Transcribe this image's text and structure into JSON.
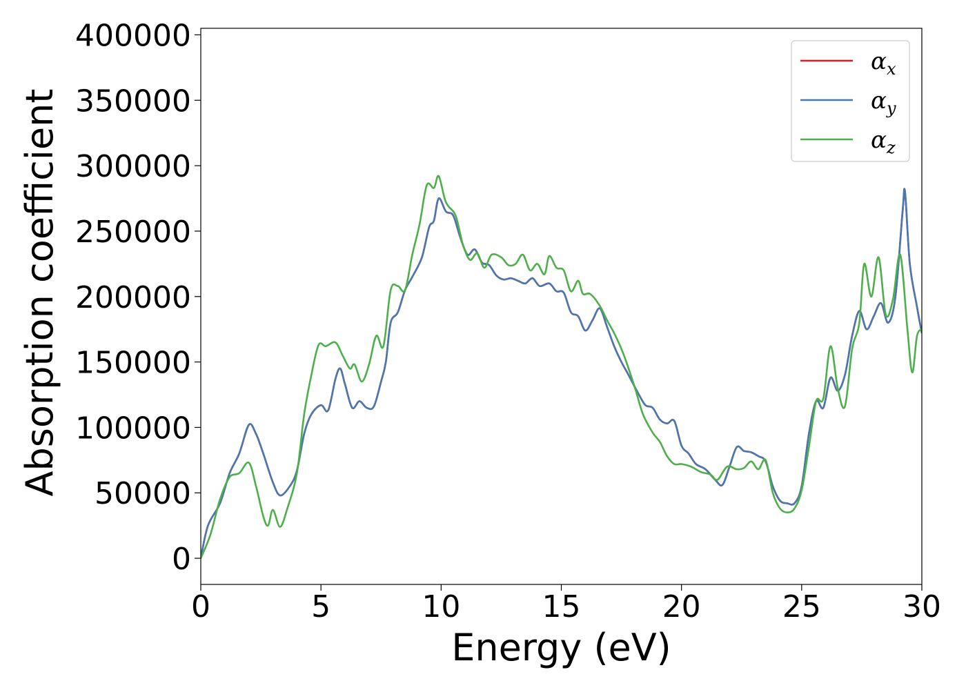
{
  "chart_data": {
    "type": "line",
    "title": "",
    "xlabel": "Energy (eV)",
    "ylabel": "Absorption coefficient",
    "xlim": [
      0,
      30
    ],
    "ylim": [
      -20000,
      405000
    ],
    "xticks": [
      0,
      5,
      10,
      15,
      20,
      25,
      30
    ],
    "yticks": [
      0,
      50000,
      100000,
      150000,
      200000,
      250000,
      300000,
      350000,
      400000
    ],
    "grid": false,
    "legend_position": "top-right",
    "series": [
      {
        "name": "α",
        "sub": "x",
        "color": "#e41a1c",
        "points": [
          [
            0,
            0
          ],
          [
            0.3,
            25000
          ],
          [
            0.8,
            42000
          ],
          [
            1.2,
            65000
          ],
          [
            1.6,
            80000
          ],
          [
            2.0,
            102000
          ],
          [
            2.3,
            95000
          ],
          [
            2.6,
            80000
          ],
          [
            3.0,
            58000
          ],
          [
            3.3,
            48000
          ],
          [
            3.7,
            55000
          ],
          [
            4.0,
            67000
          ],
          [
            4.3,
            95000
          ],
          [
            4.6,
            110000
          ],
          [
            5.0,
            117000
          ],
          [
            5.3,
            113000
          ],
          [
            5.6,
            137000
          ],
          [
            5.8,
            145000
          ],
          [
            6.0,
            133000
          ],
          [
            6.3,
            115000
          ],
          [
            6.6,
            120000
          ],
          [
            6.9,
            115000
          ],
          [
            7.2,
            116000
          ],
          [
            7.5,
            135000
          ],
          [
            7.7,
            150000
          ],
          [
            7.9,
            180000
          ],
          [
            8.2,
            188000
          ],
          [
            8.5,
            205000
          ],
          [
            8.8,
            215000
          ],
          [
            9.2,
            230000
          ],
          [
            9.5,
            253000
          ],
          [
            9.7,
            258000
          ],
          [
            9.9,
            275000
          ],
          [
            10.2,
            265000
          ],
          [
            10.5,
            262000
          ],
          [
            10.8,
            245000
          ],
          [
            11.1,
            232000
          ],
          [
            11.4,
            236000
          ],
          [
            11.7,
            226000
          ],
          [
            12.0,
            224000
          ],
          [
            12.3,
            216000
          ],
          [
            12.6,
            213000
          ],
          [
            12.9,
            214000
          ],
          [
            13.2,
            212000
          ],
          [
            13.5,
            210000
          ],
          [
            13.8,
            214000
          ],
          [
            14.1,
            208000
          ],
          [
            14.5,
            210000
          ],
          [
            14.8,
            204000
          ],
          [
            15.1,
            203000
          ],
          [
            15.4,
            188000
          ],
          [
            15.7,
            185000
          ],
          [
            16.0,
            174000
          ],
          [
            16.3,
            182000
          ],
          [
            16.6,
            191000
          ],
          [
            16.9,
            177000
          ],
          [
            17.2,
            162000
          ],
          [
            17.5,
            150000
          ],
          [
            17.8,
            140000
          ],
          [
            18.2,
            126000
          ],
          [
            18.5,
            117000
          ],
          [
            18.8,
            115000
          ],
          [
            19.1,
            106000
          ],
          [
            19.4,
            103000
          ],
          [
            19.7,
            105000
          ],
          [
            20.0,
            86000
          ],
          [
            20.3,
            80000
          ],
          [
            20.6,
            72000
          ],
          [
            21.0,
            68000
          ],
          [
            21.4,
            60000
          ],
          [
            21.7,
            56000
          ],
          [
            22.0,
            70000
          ],
          [
            22.3,
            85000
          ],
          [
            22.6,
            82000
          ],
          [
            22.9,
            81000
          ],
          [
            23.2,
            78000
          ],
          [
            23.5,
            74000
          ],
          [
            23.8,
            55000
          ],
          [
            24.1,
            44000
          ],
          [
            24.4,
            42000
          ],
          [
            24.7,
            42000
          ],
          [
            25.0,
            55000
          ],
          [
            25.3,
            95000
          ],
          [
            25.6,
            120000
          ],
          [
            25.9,
            115000
          ],
          [
            26.2,
            138000
          ],
          [
            26.5,
            128000
          ],
          [
            26.8,
            140000
          ],
          [
            27.1,
            170000
          ],
          [
            27.4,
            189000
          ],
          [
            27.7,
            175000
          ],
          [
            28.0,
            185000
          ],
          [
            28.3,
            195000
          ],
          [
            28.6,
            180000
          ],
          [
            28.9,
            200000
          ],
          [
            29.2,
            265000
          ],
          [
            29.3,
            280000
          ],
          [
            29.5,
            225000
          ],
          [
            29.8,
            192000
          ],
          [
            30.0,
            172000
          ]
        ]
      },
      {
        "name": "α",
        "sub": "y",
        "color": "#4778b3",
        "points": [
          [
            0,
            0
          ],
          [
            0.3,
            25000
          ],
          [
            0.8,
            42000
          ],
          [
            1.2,
            65000
          ],
          [
            1.6,
            80000
          ],
          [
            2.0,
            102000
          ],
          [
            2.3,
            95000
          ],
          [
            2.6,
            80000
          ],
          [
            3.0,
            58000
          ],
          [
            3.3,
            48000
          ],
          [
            3.7,
            55000
          ],
          [
            4.0,
            67000
          ],
          [
            4.3,
            95000
          ],
          [
            4.6,
            110000
          ],
          [
            5.0,
            117000
          ],
          [
            5.3,
            113000
          ],
          [
            5.6,
            137000
          ],
          [
            5.8,
            145000
          ],
          [
            6.0,
            133000
          ],
          [
            6.3,
            115000
          ],
          [
            6.6,
            120000
          ],
          [
            6.9,
            115000
          ],
          [
            7.2,
            116000
          ],
          [
            7.5,
            135000
          ],
          [
            7.7,
            150000
          ],
          [
            7.9,
            180000
          ],
          [
            8.2,
            188000
          ],
          [
            8.5,
            205000
          ],
          [
            8.8,
            215000
          ],
          [
            9.2,
            230000
          ],
          [
            9.5,
            253000
          ],
          [
            9.7,
            258000
          ],
          [
            9.9,
            275000
          ],
          [
            10.2,
            265000
          ],
          [
            10.5,
            262000
          ],
          [
            10.8,
            245000
          ],
          [
            11.1,
            232000
          ],
          [
            11.4,
            236000
          ],
          [
            11.7,
            226000
          ],
          [
            12.0,
            224000
          ],
          [
            12.3,
            216000
          ],
          [
            12.6,
            213000
          ],
          [
            12.9,
            214000
          ],
          [
            13.2,
            212000
          ],
          [
            13.5,
            210000
          ],
          [
            13.8,
            214000
          ],
          [
            14.1,
            208000
          ],
          [
            14.5,
            210000
          ],
          [
            14.8,
            204000
          ],
          [
            15.1,
            203000
          ],
          [
            15.4,
            188000
          ],
          [
            15.7,
            185000
          ],
          [
            16.0,
            174000
          ],
          [
            16.3,
            182000
          ],
          [
            16.6,
            191000
          ],
          [
            16.9,
            177000
          ],
          [
            17.2,
            162000
          ],
          [
            17.5,
            150000
          ],
          [
            17.8,
            140000
          ],
          [
            18.2,
            126000
          ],
          [
            18.5,
            117000
          ],
          [
            18.8,
            115000
          ],
          [
            19.1,
            106000
          ],
          [
            19.4,
            103000
          ],
          [
            19.7,
            105000
          ],
          [
            20.0,
            86000
          ],
          [
            20.3,
            80000
          ],
          [
            20.6,
            72000
          ],
          [
            21.0,
            68000
          ],
          [
            21.4,
            60000
          ],
          [
            21.7,
            56000
          ],
          [
            22.0,
            70000
          ],
          [
            22.3,
            85000
          ],
          [
            22.6,
            82000
          ],
          [
            22.9,
            81000
          ],
          [
            23.2,
            78000
          ],
          [
            23.5,
            74000
          ],
          [
            23.8,
            55000
          ],
          [
            24.1,
            44000
          ],
          [
            24.4,
            42000
          ],
          [
            24.7,
            42000
          ],
          [
            25.0,
            55000
          ],
          [
            25.3,
            95000
          ],
          [
            25.6,
            120000
          ],
          [
            25.9,
            115000
          ],
          [
            26.2,
            138000
          ],
          [
            26.5,
            128000
          ],
          [
            26.8,
            140000
          ],
          [
            27.1,
            170000
          ],
          [
            27.4,
            189000
          ],
          [
            27.7,
            175000
          ],
          [
            28.0,
            185000
          ],
          [
            28.3,
            195000
          ],
          [
            28.6,
            180000
          ],
          [
            28.9,
            200000
          ],
          [
            29.2,
            265000
          ],
          [
            29.3,
            280000
          ],
          [
            29.5,
            225000
          ],
          [
            29.8,
            192000
          ],
          [
            30.0,
            172000
          ]
        ]
      },
      {
        "name": "α",
        "sub": "z",
        "color": "#4daf4a",
        "points": [
          [
            0,
            0
          ],
          [
            0.4,
            18000
          ],
          [
            0.8,
            45000
          ],
          [
            1.2,
            62000
          ],
          [
            1.6,
            65000
          ],
          [
            2.0,
            73000
          ],
          [
            2.3,
            55000
          ],
          [
            2.6,
            32000
          ],
          [
            2.8,
            25000
          ],
          [
            3.0,
            37000
          ],
          [
            3.3,
            24000
          ],
          [
            3.6,
            38000
          ],
          [
            4.0,
            65000
          ],
          [
            4.3,
            110000
          ],
          [
            4.6,
            140000
          ],
          [
            4.9,
            163000
          ],
          [
            5.2,
            162000
          ],
          [
            5.6,
            165000
          ],
          [
            5.9,
            155000
          ],
          [
            6.2,
            145000
          ],
          [
            6.4,
            148000
          ],
          [
            6.7,
            135000
          ],
          [
            7.0,
            148000
          ],
          [
            7.3,
            170000
          ],
          [
            7.6,
            162000
          ],
          [
            7.9,
            205000
          ],
          [
            8.2,
            208000
          ],
          [
            8.5,
            205000
          ],
          [
            8.8,
            232000
          ],
          [
            9.1,
            255000
          ],
          [
            9.4,
            285000
          ],
          [
            9.7,
            283000
          ],
          [
            9.9,
            292000
          ],
          [
            10.2,
            272000
          ],
          [
            10.6,
            262000
          ],
          [
            10.9,
            240000
          ],
          [
            11.2,
            228000
          ],
          [
            11.5,
            233000
          ],
          [
            11.8,
            222000
          ],
          [
            12.1,
            232000
          ],
          [
            12.5,
            230000
          ],
          [
            12.8,
            224000
          ],
          [
            13.1,
            225000
          ],
          [
            13.4,
            232000
          ],
          [
            13.7,
            220000
          ],
          [
            14.0,
            225000
          ],
          [
            14.3,
            217000
          ],
          [
            14.5,
            231000
          ],
          [
            14.8,
            222000
          ],
          [
            15.1,
            220000
          ],
          [
            15.4,
            204000
          ],
          [
            15.7,
            212000
          ],
          [
            15.9,
            202000
          ],
          [
            16.2,
            202000
          ],
          [
            16.6,
            193000
          ],
          [
            16.9,
            182000
          ],
          [
            17.2,
            172000
          ],
          [
            17.5,
            160000
          ],
          [
            17.8,
            145000
          ],
          [
            18.1,
            128000
          ],
          [
            18.4,
            110000
          ],
          [
            18.8,
            96000
          ],
          [
            19.1,
            89000
          ],
          [
            19.4,
            78000
          ],
          [
            19.7,
            72000
          ],
          [
            20.0,
            72000
          ],
          [
            20.4,
            70000
          ],
          [
            20.8,
            66000
          ],
          [
            21.2,
            64000
          ],
          [
            21.5,
            60000
          ],
          [
            21.9,
            70000
          ],
          [
            22.3,
            68000
          ],
          [
            22.6,
            69000
          ],
          [
            22.9,
            74000
          ],
          [
            23.2,
            68000
          ],
          [
            23.5,
            75000
          ],
          [
            23.8,
            50000
          ],
          [
            24.1,
            38000
          ],
          [
            24.4,
            35000
          ],
          [
            24.7,
            38000
          ],
          [
            25.0,
            52000
          ],
          [
            25.3,
            85000
          ],
          [
            25.6,
            120000
          ],
          [
            25.9,
            122000
          ],
          [
            26.2,
            162000
          ],
          [
            26.5,
            130000
          ],
          [
            26.8,
            116000
          ],
          [
            27.1,
            160000
          ],
          [
            27.4,
            180000
          ],
          [
            27.6,
            225000
          ],
          [
            27.9,
            200000
          ],
          [
            28.2,
            230000
          ],
          [
            28.5,
            186000
          ],
          [
            28.8,
            198000
          ],
          [
            29.1,
            232000
          ],
          [
            29.4,
            175000
          ],
          [
            29.6,
            142000
          ],
          [
            29.8,
            170000
          ],
          [
            30.0,
            175000
          ]
        ]
      }
    ]
  }
}
